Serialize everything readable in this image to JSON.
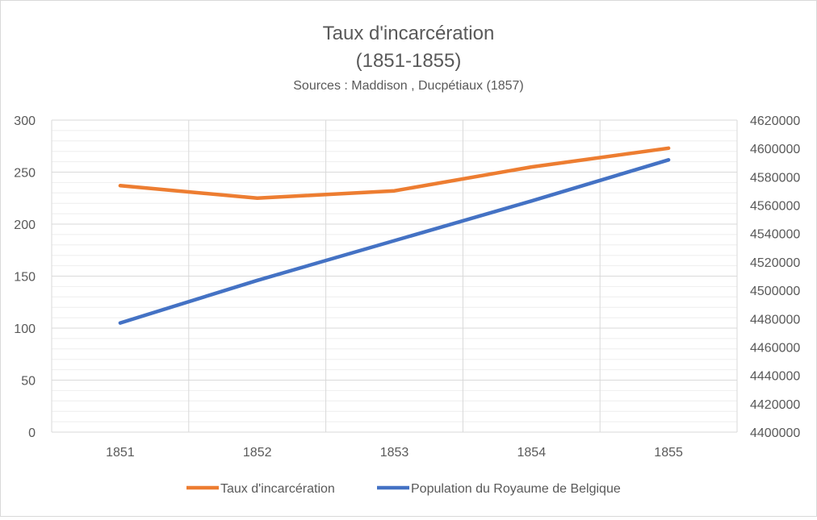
{
  "chart_data": {
    "type": "line",
    "title": "Taux d'incarcération",
    "title_line2": "(1851-1855)",
    "subtitle": "Sources : Maddison , Ducpétiaux (1857)",
    "categories": [
      "1851",
      "1852",
      "1853",
      "1854",
      "1855"
    ],
    "series": [
      {
        "name": "Taux d'incarcération",
        "axis": "left",
        "color": "#ED7D31",
        "values": [
          237,
          225,
          232,
          255,
          273
        ]
      },
      {
        "name": "Population du Royaume de Belgique",
        "axis": "right",
        "color": "#4472C4",
        "values": [
          4477000,
          4507000,
          4535000,
          4563000,
          4592000
        ]
      }
    ],
    "y_left": {
      "min": 0,
      "max": 300,
      "ticks": [
        "0",
        "50",
        "100",
        "150",
        "200",
        "250",
        "300"
      ]
    },
    "y_right": {
      "min": 4400000,
      "max": 4620000,
      "ticks": [
        "4400000",
        "4420000",
        "4440000",
        "4460000",
        "4480000",
        "4500000",
        "4520000",
        "4540000",
        "4560000",
        "4580000",
        "4600000",
        "4620000"
      ]
    },
    "grid": true,
    "legend_position": "bottom"
  }
}
